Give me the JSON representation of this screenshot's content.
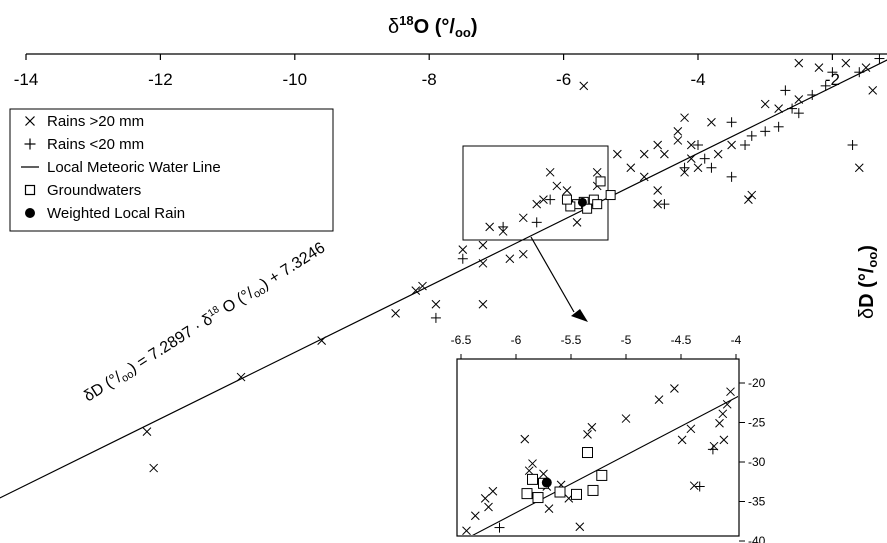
{
  "chart_data": [
    {
      "type": "scatter",
      "xlabel": "δ18O (‰)",
      "xlabel_parts": {
        "prefix": "δ",
        "sup": "18",
        "suffix": "O (°/",
        "sub": "oo",
        "close": ")"
      },
      "ylabel": "δD (‰)",
      "ylabel_parts": {
        "prefix": "δ",
        "main": "D (°/",
        "sub": "oo",
        "close": ")"
      },
      "xlim": [
        -14,
        1
      ],
      "ylim": [
        -110,
        5
      ],
      "xticks": [
        "-14",
        "-12",
        "-10",
        "-8",
        "-6",
        "-4",
        "-2",
        "0"
      ],
      "yticks": [
        "0",
        "-20",
        "-40",
        "-60",
        "-80",
        "-100"
      ],
      "legend_position": "top-left",
      "legend": [
        {
          "label": "Rains >20 mm",
          "marker": "x"
        },
        {
          "label": "Rains <20 mm",
          "marker": "+"
        },
        {
          "label": "Local Meteoric Water Line",
          "marker": "line"
        },
        {
          "label": "Groundwaters",
          "marker": "square"
        },
        {
          "label": "Weighted Local Rain",
          "marker": "dot"
        }
      ],
      "annotation": {
        "text_parts": [
          "δD (",
          "°/",
          "oo",
          ") = 7.2897 · δ",
          "18",
          " O (",
          "°/",
          "oo",
          ") + 7.3246"
        ]
      },
      "lmwl": {
        "slope": 7.2897,
        "intercept": 7.3246
      },
      "series": [
        {
          "name": "Rains >20 mm",
          "marker": "x",
          "points": [
            [
              -12.2,
              -83
            ],
            [
              -12.1,
              -91
            ],
            [
              -10.8,
              -71
            ],
            [
              -9.6,
              -63
            ],
            [
              -8.5,
              -57
            ],
            [
              -8.2,
              -52
            ],
            [
              -8.1,
              -51
            ],
            [
              -7.9,
              -55
            ],
            [
              -7.5,
              -43
            ],
            [
              -7.2,
              -46
            ],
            [
              -7.2,
              -42
            ],
            [
              -7.1,
              -38
            ],
            [
              -7.2,
              -55
            ],
            [
              -6.9,
              -39
            ],
            [
              -6.8,
              -45
            ],
            [
              -6.6,
              -44
            ],
            [
              -6.6,
              -36
            ],
            [
              -6.4,
              -33
            ],
            [
              -6.3,
              -32
            ],
            [
              -6.1,
              -29
            ],
            [
              -5.95,
              -30
            ],
            [
              -5.8,
              -37
            ],
            [
              -6.2,
              -26
            ],
            [
              -5.5,
              -29
            ],
            [
              -5.5,
              -26
            ],
            [
              -5.2,
              -22
            ],
            [
              -5.0,
              -25
            ],
            [
              -4.8,
              -27
            ],
            [
              -4.6,
              -30
            ],
            [
              -4.8,
              -22
            ],
            [
              -4.6,
              -20
            ],
            [
              -4.5,
              -22
            ],
            [
              -4.3,
              -17
            ],
            [
              -4.3,
              -19
            ],
            [
              -4.2,
              -14
            ],
            [
              -4.1,
              -20
            ],
            [
              -4.0,
              -25
            ],
            [
              -4.2,
              -26
            ],
            [
              -4.1,
              -23
            ],
            [
              -3.8,
              -15
            ],
            [
              -3.7,
              -22
            ],
            [
              -3.5,
              -20
            ],
            [
              -3.2,
              -31
            ],
            [
              -3.0,
              -11
            ],
            [
              -2.8,
              -12
            ],
            [
              -2.5,
              -2
            ],
            [
              -2.5,
              -10
            ],
            [
              -2.2,
              -3
            ],
            [
              -1.8,
              -2
            ],
            [
              -1.5,
              -3
            ],
            [
              -1.4,
              -8
            ],
            [
              -0.6,
              -4
            ],
            [
              -0.3,
              -2
            ],
            [
              0.2,
              0
            ],
            [
              -4.6,
              -33
            ],
            [
              -5.7,
              -7
            ],
            [
              -3.25,
              -32
            ],
            [
              -1.6,
              -25
            ]
          ]
        },
        {
          "name": "Rains <20 mm",
          "marker": "+",
          "points": [
            [
              -7.9,
              -58
            ],
            [
              -7.5,
              -45
            ],
            [
              -6.9,
              -38
            ],
            [
              -6.4,
              -37
            ],
            [
              -6.2,
              -32
            ],
            [
              -4.5,
              -33
            ],
            [
              -4.2,
              -25
            ],
            [
              -4.0,
              -20
            ],
            [
              -3.9,
              -23
            ],
            [
              -3.8,
              -25
            ],
            [
              -3.5,
              -15
            ],
            [
              -3.5,
              -27
            ],
            [
              -3.2,
              -18
            ],
            [
              -3.0,
              -17
            ],
            [
              -2.8,
              -16
            ],
            [
              -2.6,
              -12
            ],
            [
              -2.5,
              -13
            ],
            [
              -2.3,
              -9
            ],
            [
              -2.1,
              -7
            ],
            [
              -2.0,
              -4
            ],
            [
              -1.6,
              -4
            ],
            [
              -1.3,
              -1
            ],
            [
              -1.0,
              0
            ],
            [
              -0.5,
              -6
            ],
            [
              -0.3,
              -0.5
            ],
            [
              0.3,
              3
            ],
            [
              -3.3,
              -20
            ],
            [
              -2.7,
              -8
            ],
            [
              -1.7,
              -20
            ]
          ]
        },
        {
          "name": "Groundwaters",
          "marker": "square",
          "points": [
            [
              -5.45,
              -28
            ],
            [
              -5.55,
              -32
            ],
            [
              -5.7,
              -32.5
            ],
            [
              -5.8,
              -33
            ],
            [
              -5.9,
              -33.5
            ],
            [
              -5.95,
              -32
            ],
            [
              -5.65,
              -34
            ],
            [
              -5.5,
              -33
            ],
            [
              -5.3,
              -31
            ]
          ]
        },
        {
          "name": "Weighted Local Rain",
          "marker": "dot",
          "points": [
            [
              -5.72,
              -32.6
            ]
          ]
        }
      ]
    },
    {
      "type": "scatter",
      "inset": true,
      "xlim": [
        -6.5,
        -4
      ],
      "ylim": [
        -40,
        -20
      ],
      "xticks": [
        "-6.5",
        "-6",
        "-5.5",
        "-5",
        "-4.5",
        "-4"
      ],
      "yticks": [
        "-20",
        "-25",
        "-30",
        "-35",
        "-40"
      ],
      "lmwl": {
        "slope": 7.2897,
        "intercept": 7.3246
      },
      "series": [
        {
          "name": "Rains >20 mm",
          "marker": "x",
          "points": [
            [
              -6.45,
              -38.7
            ],
            [
              -6.37,
              -36.8
            ],
            [
              -6.28,
              -34.6
            ],
            [
              -6.25,
              -35.7
            ],
            [
              -6.21,
              -33.7
            ],
            [
              -5.92,
              -27.1
            ],
            [
              -5.88,
              -31.1
            ],
            [
              -5.85,
              -30.2
            ],
            [
              -5.75,
              -31.5
            ],
            [
              -5.72,
              -33.1
            ],
            [
              -5.7,
              -35.9
            ],
            [
              -5.59,
              -32.9
            ],
            [
              -5.52,
              -34.6
            ],
            [
              -5.42,
              -38.2
            ],
            [
              -5.35,
              -26.5
            ],
            [
              -5.31,
              -25.6
            ],
            [
              -5.0,
              -24.5
            ],
            [
              -4.7,
              -22.1
            ],
            [
              -4.56,
              -20.7
            ],
            [
              -4.41,
              -25.8
            ],
            [
              -4.49,
              -27.2
            ],
            [
              -4.12,
              -23.9
            ],
            [
              -4.08,
              -22.7
            ],
            [
              -4.15,
              -25.1
            ],
            [
              -4.11,
              -27.2
            ],
            [
              -4.2,
              -28.0
            ],
            [
              -4.38,
              -33.0
            ],
            [
              -4.05,
              -21.1
            ]
          ]
        },
        {
          "name": "Rains <20 mm",
          "marker": "+",
          "points": [
            [
              -6.15,
              -38.3
            ],
            [
              -4.33,
              -33.1
            ],
            [
              -4.21,
              -28.4
            ]
          ]
        },
        {
          "name": "Groundwaters",
          "marker": "square",
          "points": [
            [
              -5.35,
              -28.8
            ],
            [
              -5.22,
              -31.7
            ],
            [
              -5.3,
              -33.6
            ],
            [
              -5.45,
              -34.1
            ],
            [
              -5.6,
              -33.8
            ],
            [
              -5.75,
              -32.7
            ],
            [
              -5.8,
              -34.5
            ],
            [
              -5.9,
              -34.0
            ],
            [
              -5.85,
              -32.2
            ]
          ]
        },
        {
          "name": "Weighted Local Rain",
          "marker": "dot",
          "points": [
            [
              -5.72,
              -32.6
            ]
          ]
        }
      ]
    }
  ]
}
